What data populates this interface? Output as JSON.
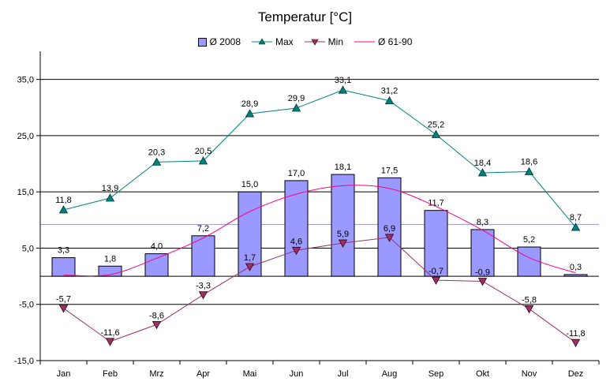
{
  "chart_data": {
    "type": "bar+line",
    "title": "Temperatur [°C]",
    "categories": [
      "Jan",
      "Feb",
      "Mrz",
      "Apr",
      "Mai",
      "Jun",
      "Jul",
      "Aug",
      "Sep",
      "Okt",
      "Nov",
      "Dez"
    ],
    "ylim": [
      -15,
      40
    ],
    "yticks": [
      35,
      25,
      15,
      5,
      -5,
      -15
    ],
    "ytick_labels": [
      "35,0",
      "25,0",
      "15,0",
      "5,0",
      "-5,0",
      "-15,0"
    ],
    "reference_line": 9.2,
    "legend_position": "top-center",
    "grid": "horizontal major gridlines",
    "series": [
      {
        "name": "Ø 2008",
        "kind": "bar",
        "color": "#9999ff",
        "values": [
          3.3,
          1.8,
          4.0,
          7.2,
          15.0,
          17.0,
          18.1,
          17.5,
          11.7,
          8.3,
          5.2,
          0.3
        ],
        "labels": [
          "3,3",
          "1,8",
          "4,0",
          "7,2",
          "15,0",
          "17,0",
          "18,1",
          "17,5",
          "11,7",
          "8,3",
          "5,2",
          "0,3"
        ]
      },
      {
        "name": "Max",
        "kind": "line-marker-up",
        "color": "#008080",
        "values": [
          11.8,
          13.9,
          20.3,
          20.5,
          28.9,
          29.9,
          33.1,
          31.2,
          25.2,
          18.4,
          18.6,
          8.7
        ],
        "labels": [
          "11,8",
          "13,9",
          "20,3",
          "20,5",
          "28,9",
          "29,9",
          "33,1",
          "31,2",
          "25,2",
          "18,4",
          "18,6",
          "8,7"
        ]
      },
      {
        "name": "Min",
        "kind": "line-marker-down",
        "color": "#993366",
        "values": [
          -5.7,
          -11.6,
          -8.6,
          -3.3,
          1.7,
          4.6,
          5.9,
          6.9,
          -0.7,
          -0.9,
          -5.8,
          -11.8
        ],
        "labels": [
          "-5,7",
          "-11,6",
          "-8,6",
          "-3,3",
          "1,7",
          "4,6",
          "5,9",
          "6,9",
          "-0,7",
          "-0,9",
          "-5,8",
          "-11,8"
        ]
      },
      {
        "name": "Ø 61-90",
        "kind": "smooth-line",
        "color": "#ff0080",
        "values": [
          0.2,
          0.3,
          3.2,
          6.8,
          11.5,
          14.6,
          16.1,
          15.6,
          12.4,
          8.2,
          3.3,
          0.6
        ]
      }
    ]
  }
}
